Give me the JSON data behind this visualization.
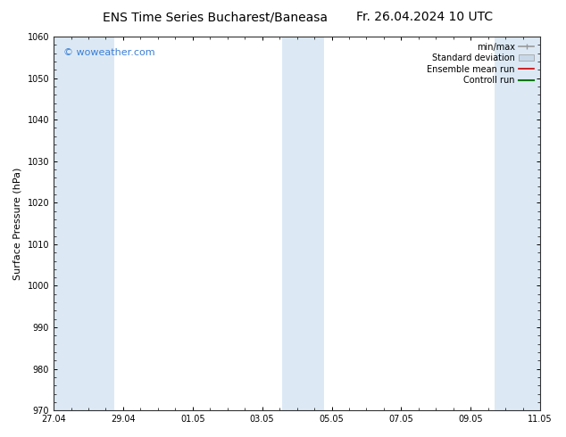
{
  "title_left": "ENS Time Series Bucharest/Baneasa",
  "title_right": "Fr. 26.04.2024 10 UTC",
  "ylabel": "Surface Pressure (hPa)",
  "ylim": [
    970,
    1060
  ],
  "yticks": [
    970,
    980,
    990,
    1000,
    1010,
    1020,
    1030,
    1040,
    1050,
    1060
  ],
  "xtick_labels": [
    "27.04",
    "29.04",
    "01.05",
    "03.05",
    "05.05",
    "07.05",
    "09.05",
    "11.05"
  ],
  "xlim": [
    0,
    16
  ],
  "shaded_bands": [
    {
      "x_start": 0,
      "x_end": 1.0
    },
    {
      "x_start": 1.0,
      "x_end": 2.0
    },
    {
      "x_start": 7.5,
      "x_end": 8.2
    },
    {
      "x_start": 8.2,
      "x_end": 8.9
    },
    {
      "x_start": 14.5,
      "x_end": 16.0
    }
  ],
  "shade_color": "#dce9f5",
  "watermark_text": "© woweather.com",
  "watermark_color": "#3a7fd5",
  "legend_items": [
    {
      "label": "min/max",
      "color": "#999999",
      "lw": 1.2,
      "style": "errorbar"
    },
    {
      "label": "Standard deviation",
      "color": "#c8d8e8",
      "lw": 5,
      "style": "thick"
    },
    {
      "label": "Ensemble mean run",
      "color": "#cc0000",
      "lw": 1.2,
      "style": "line"
    },
    {
      "label": "Controll run",
      "color": "#007700",
      "lw": 1.5,
      "style": "line"
    }
  ],
  "bg_color": "#ffffff",
  "font_size_title": 10,
  "font_size_tick": 7,
  "font_size_ylabel": 8,
  "font_size_watermark": 8,
  "font_size_legend": 7
}
